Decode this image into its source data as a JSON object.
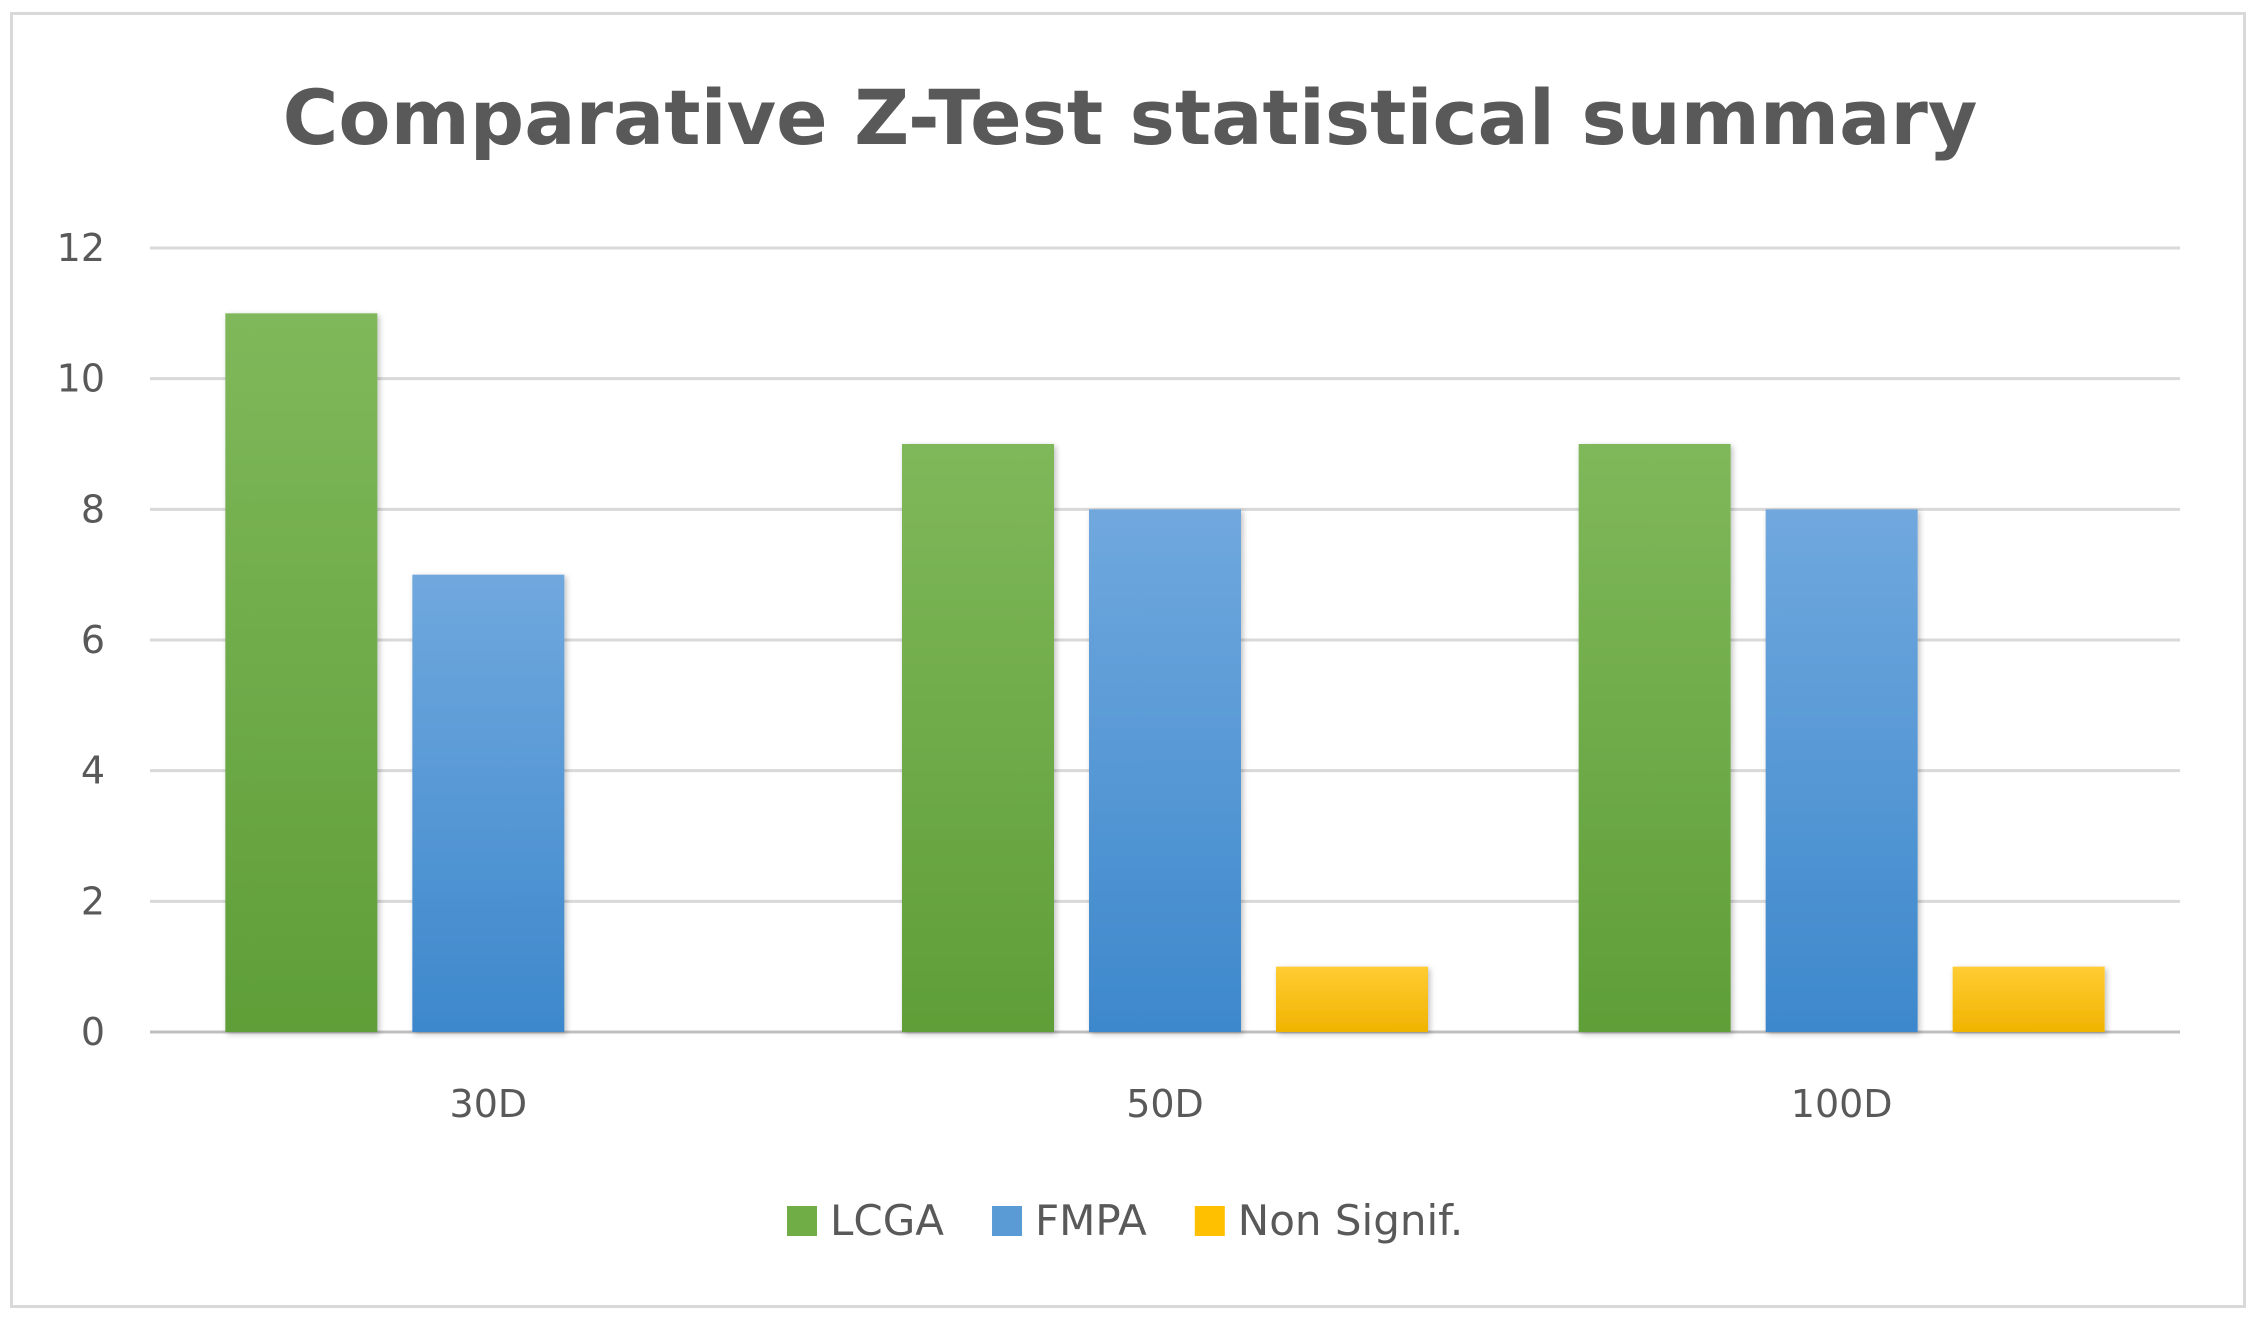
{
  "chart_data": {
    "type": "bar",
    "title": "Comparative Z-Test statistical summary",
    "xlabel": "",
    "ylabel": "",
    "categories": [
      "30D",
      "50D",
      "100D"
    ],
    "ylim": [
      0,
      12
    ],
    "yticks": [
      0,
      2,
      4,
      6,
      8,
      10,
      12
    ],
    "grid": true,
    "legend_position": "bottom",
    "series": [
      {
        "name": "LCGA",
        "color": "#70ad47",
        "values": [
          11,
          9,
          9
        ]
      },
      {
        "name": "FMPA",
        "color": "#5b9bd5",
        "values": [
          7,
          8,
          8
        ]
      },
      {
        "name": "Non Signif.",
        "color": "#ffc000",
        "values": [
          0,
          1,
          1
        ]
      }
    ]
  }
}
